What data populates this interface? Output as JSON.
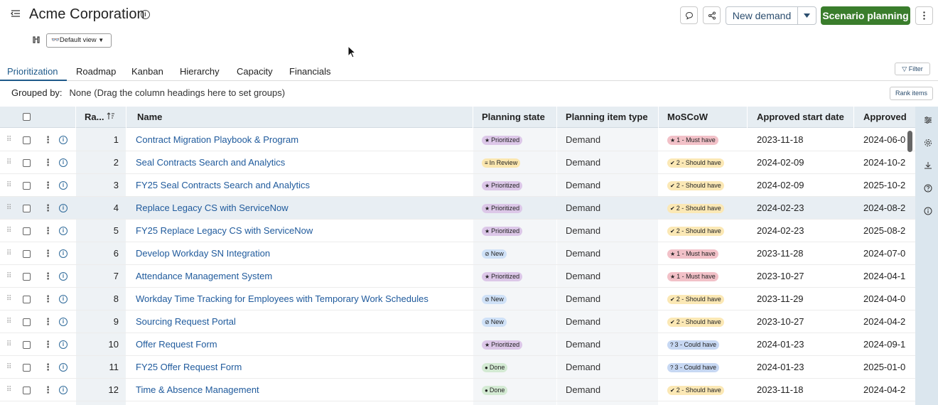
{
  "header": {
    "title": "Acme Corporation",
    "new_demand": "New demand",
    "scenario_planning": "Scenario planning",
    "view": "Default view"
  },
  "tabs": [
    "Prioritization",
    "Roadmap",
    "Kanban",
    "Hierarchy",
    "Capacity",
    "Financials"
  ],
  "toolbar": {
    "filter": "Filter",
    "rank_items": "Rank items"
  },
  "grouped": {
    "label": "Grouped by:",
    "value": "None (Drag the column headings here to set groups)"
  },
  "table": {
    "headers": {
      "rank": "Ra...",
      "name": "Name",
      "planning_state": "Planning state",
      "item_type": "Planning item type",
      "moscow": "MoSCoW",
      "approved_start": "Approved start date",
      "approved": "Approved"
    },
    "rows": [
      {
        "rank": "1",
        "name": "Contract Migration Playbook & Program",
        "state": "Prioritized",
        "type": "Demand",
        "moscow": "1 - Must have",
        "start": "2023-11-18",
        "approved": "2024-06-0"
      },
      {
        "rank": "2",
        "name": "Seal Contracts Search and Analytics",
        "state": "In Review",
        "type": "Demand",
        "moscow": "2 - Should have",
        "start": "2024-02-09",
        "approved": "2024-10-2"
      },
      {
        "rank": "3",
        "name": "FY25 Seal Contracts Search and Analytics",
        "state": "Prioritized",
        "type": "Demand",
        "moscow": "2 - Should have",
        "start": "2024-02-09",
        "approved": "2025-10-2"
      },
      {
        "rank": "4",
        "name": "Replace Legacy CS with ServiceNow",
        "state": "Prioritized",
        "type": "Demand",
        "moscow": "2 - Should have",
        "start": "2024-02-23",
        "approved": "2024-08-2"
      },
      {
        "rank": "5",
        "name": "FY25 Replace Legacy CS with ServiceNow",
        "state": "Prioritized",
        "type": "Demand",
        "moscow": "2 - Should have",
        "start": "2024-02-23",
        "approved": "2025-08-2"
      },
      {
        "rank": "6",
        "name": "Develop Workday SN Integration",
        "state": "New",
        "type": "Demand",
        "moscow": "1 - Must have",
        "start": "2023-11-28",
        "approved": "2024-07-0"
      },
      {
        "rank": "7",
        "name": "Attendance Management System",
        "state": "Prioritized",
        "type": "Demand",
        "moscow": "1 - Must have",
        "start": "2023-10-27",
        "approved": "2024-04-1"
      },
      {
        "rank": "8",
        "name": "Workday Time Tracking for Employees with Temporary Work Schedules",
        "state": "New",
        "type": "Demand",
        "moscow": "2 - Should have",
        "start": "2023-11-29",
        "approved": "2024-04-0"
      },
      {
        "rank": "9",
        "name": "Sourcing Request Portal",
        "state": "New",
        "type": "Demand",
        "moscow": "2 - Should have",
        "start": "2023-10-27",
        "approved": "2024-04-2"
      },
      {
        "rank": "10",
        "name": "Offer Request Form",
        "state": "Prioritized",
        "type": "Demand",
        "moscow": "3 - Could have",
        "start": "2024-01-23",
        "approved": "2024-09-1"
      },
      {
        "rank": "11",
        "name": "FY25 Offer Request Form",
        "state": "Done",
        "type": "Demand",
        "moscow": "3 - Could have",
        "start": "2024-01-23",
        "approved": "2025-01-0"
      },
      {
        "rank": "12",
        "name": "Time & Absence Management",
        "state": "Done",
        "type": "Demand",
        "moscow": "2 - Should have",
        "start": "2023-11-18",
        "approved": "2024-04-2"
      }
    ]
  }
}
